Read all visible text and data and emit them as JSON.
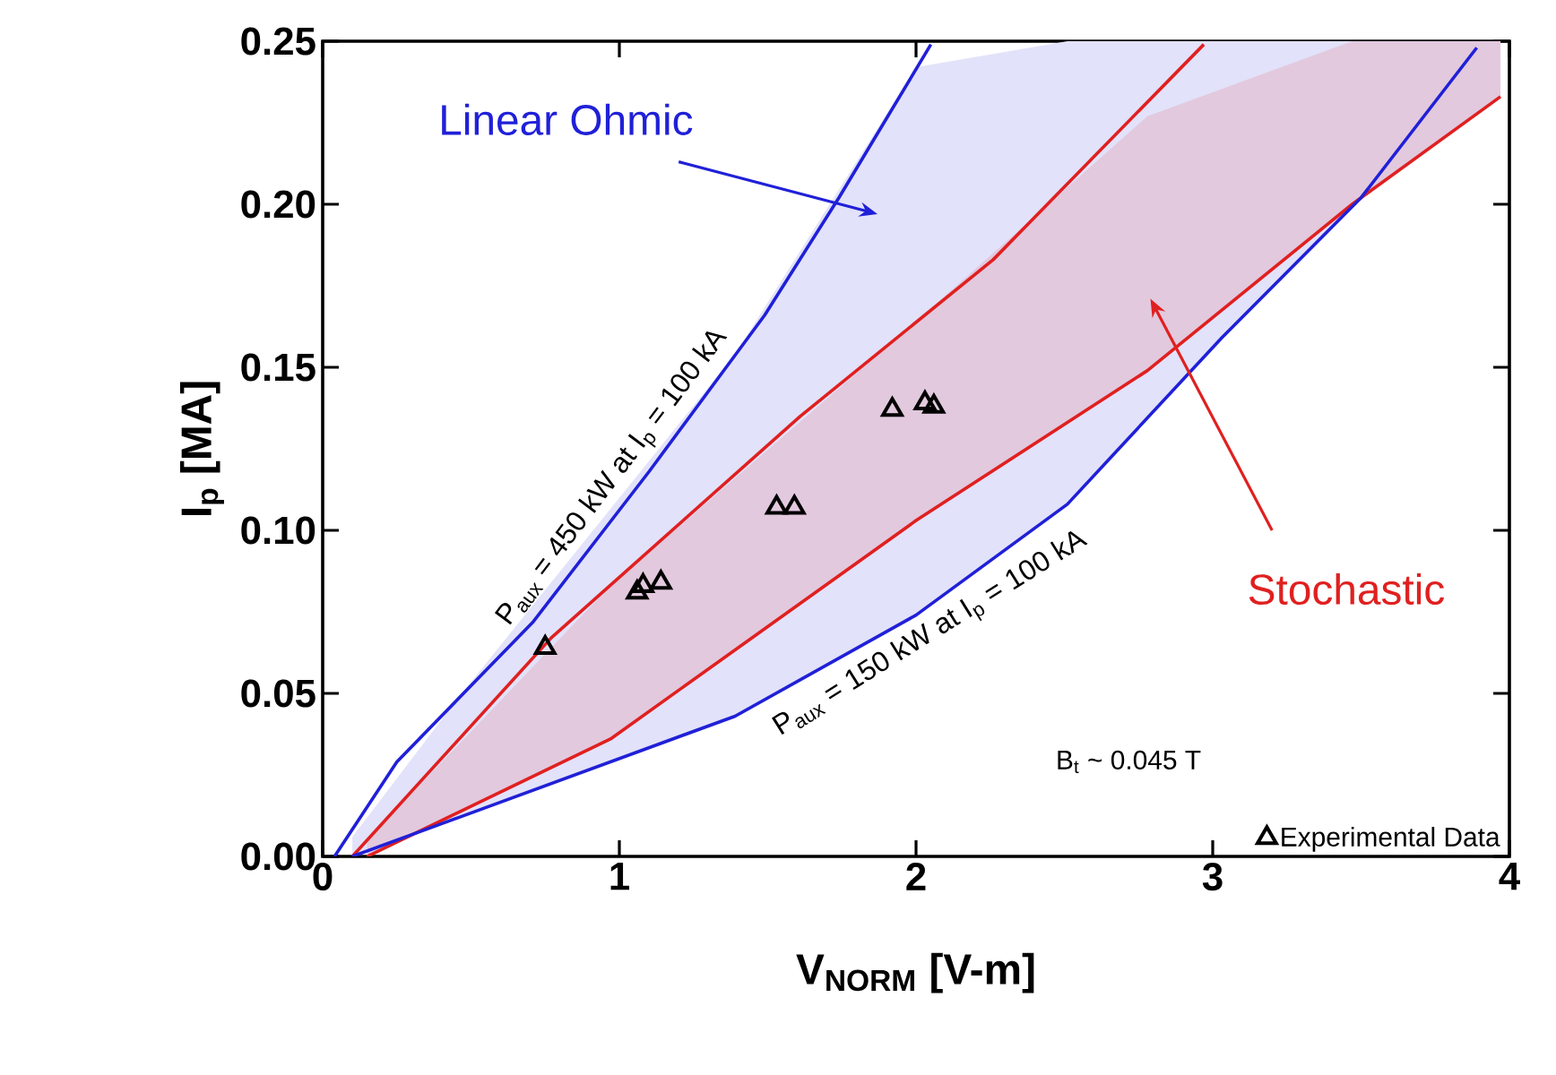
{
  "chart_data": {
    "type": "line",
    "xlabel": "V$_{NORM}$ [V-m]",
    "ylabel": "I$_{p}$ [MA]",
    "xlim": [
      0,
      4
    ],
    "ylim": [
      0,
      0.25
    ],
    "xticks": [
      0,
      1,
      2,
      3,
      4
    ],
    "yticks": [
      {
        "value": 0,
        "label": "0.00"
      },
      {
        "value": 0.05,
        "label": "0.05"
      },
      {
        "value": 0.1,
        "label": "0.10"
      },
      {
        "value": 0.15,
        "label": "0.15"
      },
      {
        "value": 0.2,
        "label": "0.20"
      },
      {
        "value": 0.25,
        "label": "0.25"
      }
    ],
    "series": [
      {
        "color": "#2020d8",
        "x": [
          0.04,
          0.25,
          0.71,
          1.1,
          1.49,
          1.74,
          2.05
        ],
        "values": [
          0,
          0.029,
          0.072,
          0.118,
          0.166,
          0.202,
          0.249
        ]
      },
      {
        "color": "#e02020",
        "x": [
          0.1,
          0.77,
          1.61,
          2.26,
          2.97
        ],
        "values": [
          0,
          0.067,
          0.135,
          0.183,
          0.249
        ]
      },
      {
        "color": "#e02020",
        "x": [
          0.15,
          0.97,
          2.0,
          2.78,
          3.47,
          3.97
        ],
        "values": [
          0,
          0.036,
          0.103,
          0.149,
          0.2,
          0.233
        ],
        "lower": [
          0,
          0.036,
          0.103,
          0.149,
          0.2,
          0.233
        ],
        "upper": [
          0.005,
          0.083,
          0.164,
          0.227,
          0.25,
          0.25
        ]
      },
      {
        "color": "#2020d8",
        "x": [
          0.1,
          0.46,
          1.39,
          2.0,
          2.51,
          3.03,
          3.5,
          3.89
        ],
        "values": [
          0,
          0.012,
          0.043,
          0.074,
          0.108,
          0.159,
          0.202,
          0.248
        ],
        "lower": [
          0,
          0.012,
          0.043,
          0.074,
          0.108,
          0.159,
          0.202,
          0.248
        ],
        "upper": [
          0.006,
          0.049,
          0.154,
          0.242,
          0.25,
          0.25,
          0.25,
          0.25
        ]
      },
      {
        "type": "scatter",
        "name": "Experimental Data",
        "color": "#000000",
        "marker": "triangle",
        "x": [
          0.75,
          1.06,
          1.08,
          1.14,
          1.53,
          1.59,
          1.92,
          2.03,
          2.06
        ],
        "values": [
          0.064,
          0.081,
          0.083,
          0.084,
          0.107,
          0.107,
          0.137,
          0.139,
          0.138
        ]
      }
    ],
    "annotations": [
      "Linear Ohmic",
      "Stochastic",
      "P$_{aux}$ = 450 kW at I$_{p}$ = 100 kA",
      "P$_{aux}$ = 150 kW at I$_{p}$ = 100 kA",
      "B$_{t}$ ~ 0.045 T"
    ],
    "legend": "bottom right",
    "marker": "none",
    "line_style": "solid"
  }
}
